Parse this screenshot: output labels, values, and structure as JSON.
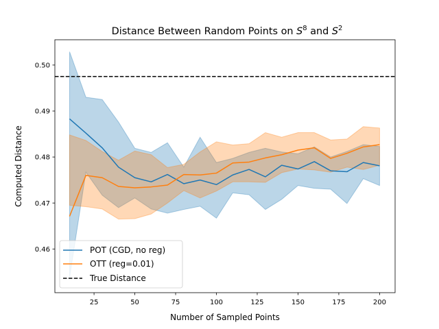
{
  "chart_data": {
    "type": "line",
    "title": "Distance Between Random Points on",
    "title_sphere_a": "S",
    "title_sphere_a_exp": "8",
    "title_joiner": "and",
    "title_sphere_b": "S",
    "title_sphere_b_exp": "2",
    "xlabel": "Number of Sampled Points",
    "ylabel": "Computed Distance",
    "xlim": [
      1.0,
      209.5
    ],
    "ylim": [
      0.4505,
      0.5055
    ],
    "xticks": [
      25,
      50,
      75,
      100,
      125,
      150,
      175,
      200
    ],
    "xtick_labels": [
      "25",
      "50",
      "75",
      "100",
      "125",
      "150",
      "175",
      "200"
    ],
    "yticks": [
      0.46,
      0.47,
      0.48,
      0.49,
      0.5
    ],
    "ytick_labels": [
      "0.46",
      "0.47",
      "0.48",
      "0.49",
      "0.50"
    ],
    "grid": false,
    "legend_position": "lower-left",
    "x": [
      10,
      20,
      30,
      40,
      50,
      60,
      70,
      80,
      90,
      100,
      110,
      120,
      130,
      140,
      150,
      160,
      170,
      180,
      190,
      200
    ],
    "series": [
      {
        "name": "POT (CGD, no reg)",
        "color": "#1f77b4",
        "values": [
          0.4883,
          0.4852,
          0.482,
          0.4778,
          0.4755,
          0.4746,
          0.4762,
          0.4742,
          0.475,
          0.474,
          0.4761,
          0.4773,
          0.4757,
          0.4782,
          0.4774,
          0.479,
          0.477,
          0.4768,
          0.4788,
          0.4781
        ],
        "upper": [
          0.5029,
          0.493,
          0.4925,
          0.4876,
          0.4819,
          0.481,
          0.4831,
          0.4778,
          0.4843,
          0.4788,
          0.4797,
          0.481,
          0.4819,
          0.4811,
          0.4807,
          0.4822,
          0.48,
          0.4812,
          0.4827,
          0.4823
        ],
        "lower": [
          0.4538,
          0.4767,
          0.4717,
          0.469,
          0.4711,
          0.4687,
          0.4678,
          0.4686,
          0.4693,
          0.4667,
          0.4722,
          0.4718,
          0.4686,
          0.4708,
          0.4738,
          0.4732,
          0.473,
          0.4699,
          0.4753,
          0.4738
        ]
      },
      {
        "name": "OTT (reg=0.01)",
        "color": "#ff7f0e",
        "values": [
          0.4671,
          0.476,
          0.4755,
          0.4736,
          0.4733,
          0.4735,
          0.4739,
          0.4762,
          0.4761,
          0.4765,
          0.4787,
          0.4789,
          0.4798,
          0.4805,
          0.4815,
          0.482,
          0.4797,
          0.4808,
          0.4822,
          0.4827
        ],
        "upper": [
          0.4848,
          0.4836,
          0.4812,
          0.4793,
          0.4813,
          0.4805,
          0.4777,
          0.4784,
          0.4811,
          0.4833,
          0.4826,
          0.4829,
          0.4853,
          0.4843,
          0.4853,
          0.4853,
          0.4837,
          0.4839,
          0.4866,
          0.4863
        ],
        "lower": [
          0.4695,
          0.4692,
          0.4687,
          0.4665,
          0.4666,
          0.4676,
          0.47,
          0.4727,
          0.4711,
          0.4726,
          0.4746,
          0.4746,
          0.4745,
          0.4766,
          0.4774,
          0.4772,
          0.4767,
          0.4778,
          0.4773,
          0.4782
        ]
      }
    ],
    "reference_line": {
      "name": "True Distance",
      "color": "#000000",
      "value": 0.4975
    }
  }
}
